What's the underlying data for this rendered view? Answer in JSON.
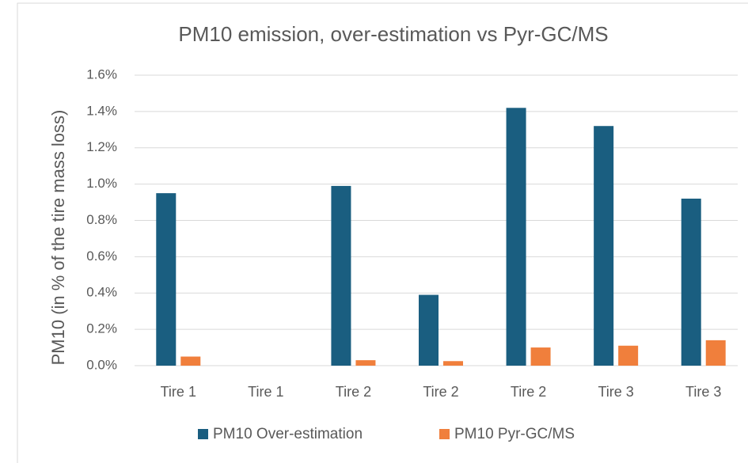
{
  "chart_data": {
    "type": "bar",
    "title": "PM10 emission, over-estimation vs Pyr-GC/MS",
    "y_label": "PM10 (in % of the tire mass loss)",
    "categories": [
      "Tire 1",
      "Tire 1",
      "Tire 2",
      "Tire 2",
      "Tire 2",
      "Tire 3",
      "Tire 3"
    ],
    "series": [
      {
        "name": "PM10 Over-estimation",
        "color": "#1a5e80",
        "values": [
          0.95,
          null,
          0.99,
          0.39,
          1.42,
          1.32,
          0.92
        ]
      },
      {
        "name": "PM10 Pyr-GC/MS",
        "color": "#f07f3c",
        "values": [
          0.05,
          null,
          0.03,
          0.025,
          0.1,
          0.11,
          0.14
        ]
      }
    ],
    "ylim": [
      0,
      1.6
    ],
    "yticks": [
      {
        "value": 0,
        "label": "0.0%"
      },
      {
        "value": 0.2,
        "label": "0.2%"
      },
      {
        "value": 0.4,
        "label": "0.4%"
      },
      {
        "value": 0.6,
        "label": "0.6%"
      },
      {
        "value": 0.8,
        "label": "0.8%"
      },
      {
        "value": 1.0,
        "label": "1.0%"
      },
      {
        "value": 1.2,
        "label": "1.2%"
      },
      {
        "value": 1.4,
        "label": "1.4%"
      },
      {
        "value": 1.6,
        "label": "1.6%"
      }
    ],
    "grid": true,
    "legend": "bottom"
  }
}
